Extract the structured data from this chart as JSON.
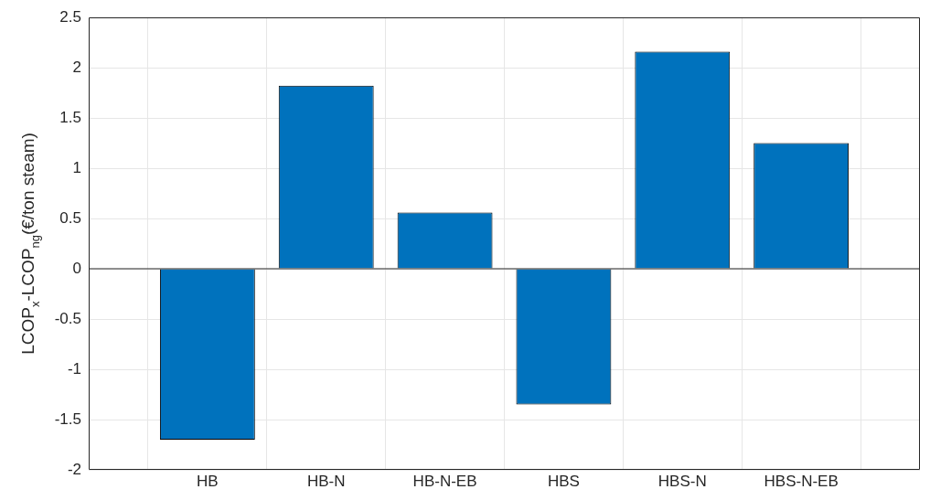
{
  "chart_data": {
    "type": "bar",
    "ylabel": "LCOP$_{x}$-LCOP$_{ng}$(€/ton steam)",
    "categories": [
      "HB",
      "HB-N",
      "HB-N-EB",
      "HBS",
      "HBS-N",
      "HBS-N-EB"
    ],
    "values": [
      -1.7,
      1.82,
      0.56,
      -1.35,
      2.16,
      1.25
    ],
    "color": "#0072bd",
    "ylim": [
      -2,
      2.5
    ],
    "yticks": [
      -2,
      -1.5,
      -1,
      -0.5,
      0,
      0.5,
      1,
      1.5,
      2,
      2.5
    ],
    "grid": true
  }
}
